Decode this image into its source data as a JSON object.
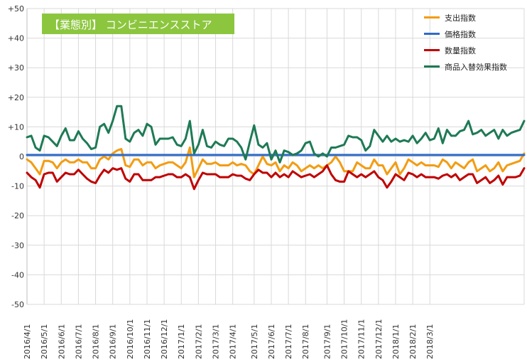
{
  "chart_data": {
    "type": "line",
    "title": "【業態別】 コンビニエンスストア",
    "ylim": [
      -50,
      50
    ],
    "y_ticks": [
      "+50",
      "+40",
      "+30",
      "+20",
      "+10",
      "0",
      "-10",
      "-20",
      "-30",
      "-40",
      "-50"
    ],
    "x_labels": [
      "2016/4/1",
      "2016/5/1",
      "2016/6/1",
      "2016/7/1",
      "2016/8/1",
      "2016/9/1",
      "2016/10/1",
      "2016/11/1",
      "2016/12/1",
      "2017/1/1",
      "2017/2/1",
      "2017/3/1",
      "2017/4/1",
      "2017/5/1",
      "2017/6/1",
      "2017/7/1",
      "2017/8/1",
      "2017/9/1",
      "2017/10/1",
      "2017/11/1",
      "2017/12/1",
      "2018/1/1",
      "2018/2/1",
      "2018/3/1"
    ],
    "x_label_index": [
      0,
      4,
      8,
      12,
      16,
      20,
      24,
      28,
      32,
      36,
      40,
      44,
      48,
      53,
      57,
      61,
      65,
      70,
      74,
      78,
      82,
      86,
      90,
      94
    ],
    "grid": true,
    "legend_position": "top-right",
    "series": [
      {
        "name": "支出指数",
        "color": "#f39c12",
        "values": [
          -1,
          -2,
          -4,
          -6,
          -1.5,
          -1.5,
          -2,
          -4,
          -2,
          -1,
          -2,
          -2,
          -1,
          -2,
          -2,
          -4,
          -4,
          -1,
          0,
          -1,
          1,
          2,
          2.5,
          -3,
          -3.5,
          -1,
          -1,
          -3,
          -2,
          -2,
          -4,
          -3,
          -2.5,
          -2,
          -2,
          -3,
          -4,
          -2,
          3,
          -7,
          -4,
          -1,
          -2.5,
          -2.5,
          -2,
          -3,
          -3,
          -3,
          -2,
          -3,
          -2.5,
          -3,
          -5,
          -6,
          -3,
          0,
          -2.5,
          -3,
          -2,
          -5,
          -3,
          -4,
          -2,
          -3,
          -5,
          -4,
          -3,
          -4,
          -3,
          -4,
          -3,
          -2,
          0,
          -2,
          -5,
          -5,
          -5,
          -2,
          -3,
          -4,
          -4,
          -1,
          -3,
          -3,
          -6,
          -4,
          -2,
          -6,
          -4,
          -1,
          -2,
          -3,
          -2,
          -3,
          -3,
          -3,
          -3.5,
          -1,
          -2,
          -4,
          -2,
          -3,
          -4,
          -2,
          -1,
          -5,
          -4,
          -3,
          -5,
          -4,
          -2,
          -5,
          -3,
          -2.5,
          -2,
          -1.5,
          1
        ]
      },
      {
        "name": "価格指数",
        "color": "#2e6bc6",
        "values": [
          0.5,
          0.5,
          0.5,
          0.5,
          0.5,
          0.5,
          0.5,
          0.5,
          0.5,
          0.5,
          0.5,
          0.5,
          0.5,
          0.5,
          0.5,
          0.5,
          0.5,
          0.5,
          0.5,
          0.5,
          0.5,
          0.5,
          0.5,
          0.5,
          0.5,
          0.5,
          0.5,
          0.5,
          0.5,
          0.5,
          0.5,
          0.5,
          0.5,
          0.5,
          0.5,
          0.5,
          0.5,
          0.5,
          0.5,
          0.5,
          0.5,
          0.5,
          0.5,
          0.5,
          0.5,
          0.5,
          0.5,
          0.5,
          0.5,
          0.5,
          0.5,
          0.5,
          0.5,
          0.5,
          0.5,
          0.5,
          0.5,
          0.5,
          0.5,
          0.5,
          0.5,
          0.5,
          0.5,
          0.5,
          0.5,
          0.5,
          0.5,
          0.5,
          0.5,
          0.5,
          0.5,
          0.5,
          0.5,
          0.5,
          0.5,
          0.5,
          0.5,
          0.5,
          0.5,
          0.5,
          0.5,
          0.5,
          0.5,
          0.5,
          0.5,
          0.5,
          0.5,
          0.5,
          0.5,
          0.5,
          0.5,
          0.5,
          0.5,
          0.5,
          0.5,
          0.5,
          0.5,
          0.5,
          0.5,
          0.5,
          0.5,
          0.5,
          0.5,
          0.5,
          0.5,
          0.5,
          0.5,
          0.5,
          0.5,
          0.5,
          0.5,
          0.5,
          0.5,
          0.5,
          0.5,
          0.5,
          0.5
        ]
      },
      {
        "name": "数量指数",
        "color": "#c00000",
        "values": [
          -5.5,
          -7,
          -8,
          -10.5,
          -6,
          -5.5,
          -5.5,
          -8.5,
          -7,
          -5.5,
          -6,
          -6,
          -4.5,
          -6,
          -7.5,
          -8.5,
          -9,
          -6.5,
          -4.5,
          -5.5,
          -4,
          -4.5,
          -4,
          -7.5,
          -8.5,
          -6,
          -6,
          -8,
          -8,
          -8,
          -7,
          -7,
          -6.5,
          -6,
          -6,
          -7,
          -7,
          -6,
          -7,
          -11,
          -8,
          -5.5,
          -6,
          -6,
          -6,
          -7,
          -7,
          -7,
          -6,
          -6.5,
          -6.5,
          -7.5,
          -8,
          -6,
          -4.5,
          -5.5,
          -5.5,
          -7,
          -5.5,
          -7,
          -6,
          -7,
          -5,
          -6,
          -7,
          -6.5,
          -6,
          -7,
          -6,
          -5,
          -3,
          -6,
          -8,
          -8.5,
          -8.5,
          -5,
          -6,
          -7,
          -6,
          -7,
          -6,
          -5,
          -7,
          -8,
          -10.5,
          -8.5,
          -6,
          -7,
          -8,
          -5.5,
          -6,
          -7,
          -6,
          -7,
          -7,
          -7,
          -7.5,
          -6.5,
          -6,
          -7,
          -6,
          -8,
          -7,
          -6,
          -6,
          -9,
          -8,
          -7,
          -9,
          -8,
          -6.5,
          -9.5,
          -7,
          -7,
          -7,
          -6.5,
          -4
        ]
      },
      {
        "name": "商品入替効果指数",
        "color": "#1e7a55",
        "values": [
          6.5,
          7,
          3,
          2,
          7,
          6.5,
          5,
          3.5,
          7,
          9.5,
          5.5,
          5.5,
          8.5,
          6,
          4.5,
          2.5,
          3,
          10,
          11,
          8,
          12,
          17,
          17,
          6,
          5,
          8,
          9,
          7,
          11,
          10,
          4,
          6,
          6,
          6,
          6.5,
          4,
          3.5,
          6,
          12,
          1,
          4,
          9,
          3.5,
          3,
          5,
          4,
          3.5,
          6,
          6,
          5,
          3,
          -1,
          5,
          10.5,
          4,
          3,
          4.5,
          -1,
          2,
          -2,
          2,
          1.5,
          0.5,
          1,
          2,
          4.5,
          5,
          1,
          0,
          1,
          0,
          3,
          3,
          3.5,
          4,
          7,
          6.5,
          6.5,
          5.5,
          2,
          3.5,
          9,
          7,
          5,
          7,
          5,
          6,
          5,
          5.5,
          5,
          7,
          4.5,
          6,
          8,
          5.5,
          6,
          9.5,
          4.5,
          9,
          7,
          7,
          8.5,
          9,
          12,
          7.5,
          8,
          9,
          7,
          8,
          9,
          6,
          9,
          7,
          8,
          8.5,
          9,
          12
        ]
      }
    ]
  }
}
